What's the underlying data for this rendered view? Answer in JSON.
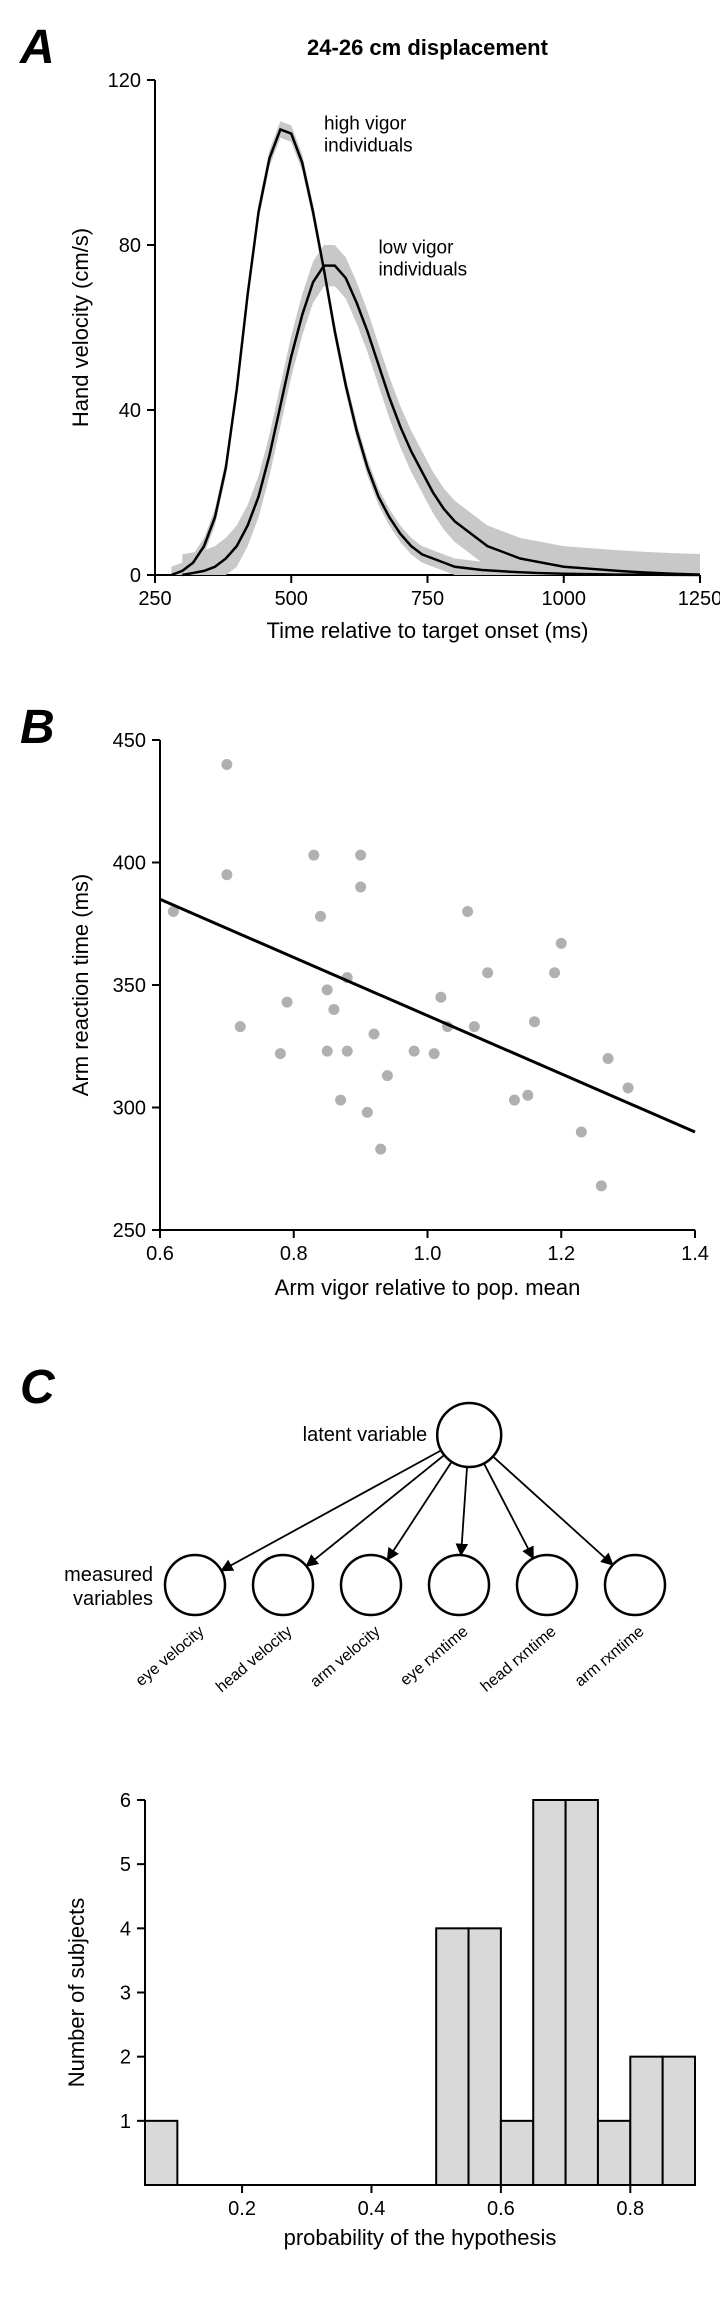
{
  "panelA": {
    "label": "A",
    "title": "24-26 cm displacement",
    "xlabel": "Time relative to target onset (ms)",
    "ylabel": "Hand velocity (cm/s)",
    "xlim": [
      250,
      1250
    ],
    "ylim": [
      0,
      120
    ],
    "xticks": [
      250,
      500,
      750,
      1000,
      1250
    ],
    "yticks": [
      0,
      40,
      80,
      120
    ],
    "high_label": "high vigor\nindividuals",
    "low_label": "low vigor\nindividuals",
    "high_curve": [
      [
        280,
        0
      ],
      [
        300,
        1
      ],
      [
        320,
        3
      ],
      [
        340,
        7
      ],
      [
        360,
        14
      ],
      [
        380,
        26
      ],
      [
        400,
        45
      ],
      [
        420,
        68
      ],
      [
        440,
        88
      ],
      [
        460,
        101
      ],
      [
        480,
        108
      ],
      [
        500,
        107
      ],
      [
        520,
        100
      ],
      [
        540,
        88
      ],
      [
        560,
        74
      ],
      [
        580,
        59
      ],
      [
        600,
        46
      ],
      [
        620,
        35
      ],
      [
        640,
        26
      ],
      [
        660,
        19
      ],
      [
        680,
        14
      ],
      [
        700,
        10
      ],
      [
        720,
        7
      ],
      [
        740,
        5
      ],
      [
        760,
        4
      ],
      [
        780,
        3
      ],
      [
        800,
        2
      ],
      [
        850,
        1.2
      ],
      [
        900,
        0.8
      ],
      [
        950,
        0.5
      ],
      [
        1000,
        0.3
      ],
      [
        1100,
        0.1
      ],
      [
        1250,
        0
      ]
    ],
    "low_curve": [
      [
        300,
        0
      ],
      [
        320,
        0.5
      ],
      [
        340,
        1
      ],
      [
        360,
        2
      ],
      [
        380,
        4
      ],
      [
        400,
        7
      ],
      [
        420,
        12
      ],
      [
        440,
        19
      ],
      [
        460,
        29
      ],
      [
        480,
        41
      ],
      [
        500,
        53
      ],
      [
        520,
        63
      ],
      [
        540,
        71
      ],
      [
        560,
        75
      ],
      [
        580,
        75
      ],
      [
        600,
        72
      ],
      [
        620,
        66
      ],
      [
        640,
        59
      ],
      [
        660,
        51
      ],
      [
        680,
        43
      ],
      [
        700,
        36
      ],
      [
        720,
        30
      ],
      [
        740,
        25
      ],
      [
        760,
        20
      ],
      [
        780,
        16
      ],
      [
        800,
        13
      ],
      [
        820,
        11
      ],
      [
        840,
        9
      ],
      [
        860,
        7
      ],
      [
        880,
        6
      ],
      [
        900,
        5
      ],
      [
        920,
        4
      ],
      [
        940,
        3.5
      ],
      [
        960,
        3
      ],
      [
        980,
        2.5
      ],
      [
        1000,
        2
      ],
      [
        1050,
        1.5
      ],
      [
        1100,
        1
      ],
      [
        1150,
        0.6
      ],
      [
        1200,
        0.3
      ],
      [
        1250,
        0.1
      ]
    ],
    "low_shade_offset": 5,
    "line_color": "#000000",
    "shade_color": "#c8c8c8",
    "stroke_width": 2.5,
    "title_fontsize": 22,
    "label_fontsize": 22,
    "tick_fontsize": 20,
    "ann_fontsize": 19
  },
  "panelB": {
    "label": "B",
    "xlabel": "Arm vigor relative to pop. mean",
    "ylabel": "Arm reaction time (ms)",
    "xlim": [
      0.6,
      1.4
    ],
    "ylim": [
      250,
      450
    ],
    "xticks": [
      0.6,
      0.8,
      1.0,
      1.2,
      1.4
    ],
    "yticks": [
      250,
      300,
      350,
      400,
      450
    ],
    "points": [
      [
        0.62,
        380
      ],
      [
        0.7,
        395
      ],
      [
        0.7,
        440
      ],
      [
        0.72,
        333
      ],
      [
        0.78,
        322
      ],
      [
        0.79,
        343
      ],
      [
        0.83,
        403
      ],
      [
        0.84,
        378
      ],
      [
        0.85,
        323
      ],
      [
        0.85,
        348
      ],
      [
        0.86,
        340
      ],
      [
        0.87,
        303
      ],
      [
        0.88,
        353
      ],
      [
        0.88,
        323
      ],
      [
        0.9,
        403
      ],
      [
        0.9,
        390
      ],
      [
        0.91,
        298
      ],
      [
        0.92,
        330
      ],
      [
        0.93,
        283
      ],
      [
        0.94,
        313
      ],
      [
        0.98,
        323
      ],
      [
        1.01,
        322
      ],
      [
        1.02,
        345
      ],
      [
        1.03,
        333
      ],
      [
        1.06,
        380
      ],
      [
        1.07,
        333
      ],
      [
        1.09,
        355
      ],
      [
        1.13,
        303
      ],
      [
        1.15,
        305
      ],
      [
        1.16,
        335
      ],
      [
        1.19,
        355
      ],
      [
        1.2,
        367
      ],
      [
        1.23,
        290
      ],
      [
        1.26,
        268
      ],
      [
        1.27,
        320
      ],
      [
        1.3,
        308
      ]
    ],
    "fit_line": [
      [
        0.6,
        385
      ],
      [
        1.4,
        290
      ]
    ],
    "point_color": "#b0b0b0",
    "point_radius": 5.5,
    "line_color": "#000000",
    "stroke_width": 3,
    "label_fontsize": 22,
    "tick_fontsize": 20
  },
  "panelC": {
    "label": "C",
    "diagram": {
      "latent_label": "latent variable",
      "measured_label": "measured\nvariables",
      "var_labels": [
        "eye velocity",
        "head velocity",
        "arm velocity",
        "eye rxntime",
        "head rxntime",
        "arm rxntime"
      ],
      "circle_stroke": "#000000",
      "circle_fill": "#ffffff",
      "label_fontsize": 20,
      "var_fontsize": 16
    },
    "histogram": {
      "xlabel": "probability of the hypothesis",
      "ylabel": "Number of subjects",
      "xlim": [
        0.05,
        0.9
      ],
      "ylim": [
        0,
        6
      ],
      "xticks": [
        0.2,
        0.4,
        0.6,
        0.8
      ],
      "yticks": [
        1,
        2,
        3,
        4,
        5,
        6
      ],
      "bin_width": 0.05,
      "bars": [
        [
          0.075,
          1
        ],
        [
          0.525,
          4
        ],
        [
          0.575,
          4
        ],
        [
          0.625,
          1
        ],
        [
          0.675,
          6
        ],
        [
          0.725,
          6
        ],
        [
          0.775,
          1
        ],
        [
          0.825,
          2
        ],
        [
          0.875,
          2
        ]
      ],
      "bar_fill": "#d9d9d9",
      "bar_stroke": "#000000",
      "label_fontsize": 22,
      "tick_fontsize": 20
    }
  }
}
